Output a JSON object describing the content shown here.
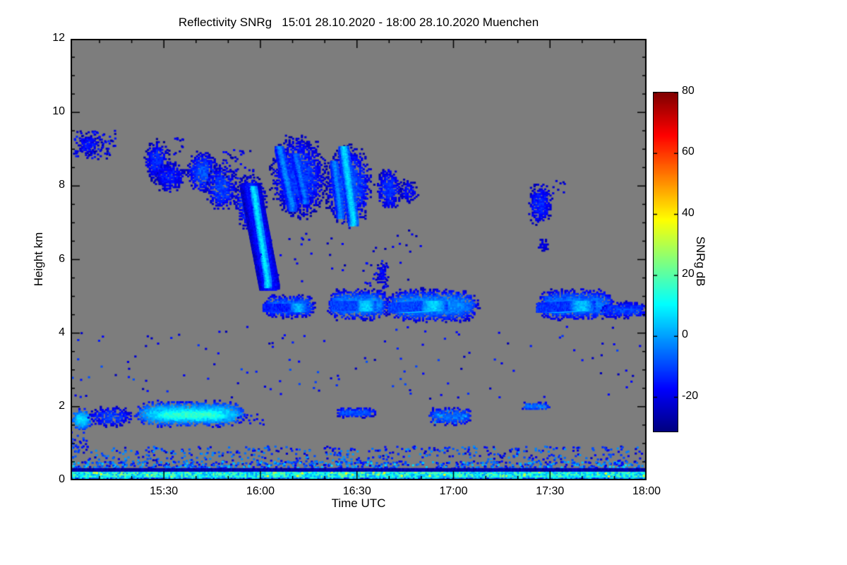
{
  "chart_data": {
    "type": "heatmap",
    "title": "Reflectivity SNRg   15:01 28.10.2020 - 18:00 28.10.2020 Muenchen",
    "site": "Muenchen",
    "time_span": {
      "start": "15:01 28.10.2020",
      "end": "18:00 28.10.2020"
    },
    "xlabel": "Time UTC",
    "ylabel": "Height km",
    "no_data_color": "#7d7d7d",
    "x_axis": {
      "start_min": 1,
      "end_min": 180,
      "minor_step_min": 10,
      "ticks": [
        {
          "label": "15:30",
          "min": 30
        },
        {
          "label": "16:00",
          "min": 60
        },
        {
          "label": "16:30",
          "min": 90
        },
        {
          "label": "17:00",
          "min": 120
        },
        {
          "label": "17:30",
          "min": 150
        },
        {
          "label": "18:00",
          "min": 180
        }
      ]
    },
    "y_axis": {
      "range": [
        0,
        12
      ],
      "ticks": [
        0,
        2,
        4,
        6,
        8,
        10,
        12
      ],
      "minor_step": 0.5
    },
    "colorbar": {
      "label": "SNRg dB",
      "ticks": [
        -20,
        0,
        20,
        40,
        60,
        80
      ],
      "range": [
        -31,
        80
      ],
      "colormap": "jet"
    },
    "features": [
      {
        "kind": "speckle",
        "t": [
          2,
          15
        ],
        "h": [
          8.7,
          9.5
        ],
        "db": [
          -27,
          -13
        ],
        "density": 9
      },
      {
        "kind": "blob",
        "t": [
          3,
          10
        ],
        "h": [
          8.85,
          9.4
        ],
        "db": [
          -26,
          -14
        ],
        "density": 0.8
      },
      {
        "kind": "blob",
        "t": [
          24,
          32
        ],
        "h": [
          8.1,
          9.25
        ],
        "db": [
          -26,
          -12
        ],
        "density": 0.85
      },
      {
        "kind": "blob",
        "t": [
          27,
          37
        ],
        "h": [
          7.8,
          8.7
        ],
        "db": [
          -26,
          -14
        ],
        "density": 0.8
      },
      {
        "kind": "speckle",
        "t": [
          31,
          36
        ],
        "h": [
          8.8,
          9.3
        ],
        "db": [
          -27,
          -18
        ],
        "density": 5
      },
      {
        "kind": "blob",
        "t": [
          37,
          47
        ],
        "h": [
          7.8,
          8.95
        ],
        "db": [
          -25,
          -8
        ],
        "density": 0.85
      },
      {
        "kind": "blob",
        "t": [
          43,
          53
        ],
        "h": [
          7.3,
          8.6
        ],
        "db": [
          -25,
          -10
        ],
        "density": 0.8
      },
      {
        "kind": "speckle",
        "t": [
          48,
          58
        ],
        "h": [
          8.2,
          9.0
        ],
        "db": [
          -27,
          -15
        ],
        "density": 5
      },
      {
        "kind": "blob",
        "t": [
          52,
          62
        ],
        "h": [
          6.8,
          8.3
        ],
        "db": [
          -25,
          -8
        ],
        "density": 0.85
      },
      {
        "kind": "streak",
        "from": [
          57.0,
          8.0
        ],
        "to": [
          63.0,
          5.25
        ],
        "wt": 3,
        "db": [
          -24,
          -13
        ]
      },
      {
        "kind": "streak",
        "from": [
          57.8,
          7.9
        ],
        "to": [
          62.3,
          5.35
        ],
        "wt": 1.3,
        "db": [
          -16,
          9
        ],
        "hw": 0.1
      },
      {
        "kind": "blob",
        "t": [
          63,
          81
        ],
        "h": [
          7.1,
          9.4
        ],
        "db": [
          -26,
          -10
        ],
        "density": 0.85
      },
      {
        "kind": "streak",
        "from": [
          66,
          9.0
        ],
        "to": [
          70,
          7.4
        ],
        "wt": 1.2,
        "db": [
          -15,
          -2
        ]
      },
      {
        "kind": "streak",
        "from": [
          71,
          8.8
        ],
        "to": [
          74,
          7.6
        ],
        "wt": 1.0,
        "db": [
          -15,
          -4
        ]
      },
      {
        "kind": "blob",
        "t": [
          80,
          95
        ],
        "h": [
          6.9,
          9.1
        ],
        "db": [
          -25,
          -8
        ],
        "density": 0.85
      },
      {
        "kind": "streak",
        "from": [
          83,
          8.6
        ],
        "to": [
          85,
          7.2
        ],
        "wt": 1.0,
        "db": [
          -14,
          -2
        ]
      },
      {
        "kind": "streak",
        "from": [
          86,
          9.0
        ],
        "to": [
          89,
          7.0
        ],
        "wt": 1.4,
        "db": [
          -12,
          7
        ]
      },
      {
        "kind": "blob",
        "t": [
          96,
          104
        ],
        "h": [
          7.3,
          8.5
        ],
        "db": [
          -25,
          -12
        ],
        "density": 0.8
      },
      {
        "kind": "blob",
        "t": [
          103,
          109
        ],
        "h": [
          7.5,
          8.2
        ],
        "db": [
          -26,
          -16
        ],
        "density": 0.7
      },
      {
        "kind": "blob",
        "t": [
          143,
          151
        ],
        "h": [
          6.9,
          8.1
        ],
        "db": [
          -26,
          -13
        ],
        "density": 0.75
      },
      {
        "kind": "blob",
        "t": [
          146,
          150
        ],
        "h": [
          6.2,
          6.6
        ],
        "db": [
          -27,
          -18
        ],
        "density": 0.6
      },
      {
        "kind": "speckle",
        "t": [
          150,
          155
        ],
        "h": [
          7.8,
          8.2
        ],
        "db": [
          -27,
          -18
        ],
        "density": 4
      },
      {
        "kind": "layer",
        "t": [
          61,
          77
        ],
        "h": [
          4.4,
          5.05
        ],
        "db": [
          -23,
          -5
        ],
        "density": 0.92
      },
      {
        "kind": "streak",
        "from": [
          64,
          4.7
        ],
        "to": [
          72,
          4.7
        ],
        "wt": 3,
        "db": [
          -14,
          2
        ],
        "hw": 0.1
      },
      {
        "kind": "layer",
        "t": [
          81,
          100
        ],
        "h": [
          4.35,
          5.2
        ],
        "db": [
          -23,
          -1
        ],
        "density": 0.92
      },
      {
        "kind": "streak",
        "from": [
          85,
          4.75
        ],
        "to": [
          93,
          4.75
        ],
        "wt": 3,
        "db": [
          -10,
          6
        ],
        "hw": 0.12
      },
      {
        "kind": "speckle",
        "t": [
          92,
          100
        ],
        "h": [
          5.2,
          6.0
        ],
        "db": [
          -26,
          -14
        ],
        "density": 5
      },
      {
        "kind": "blob",
        "t": [
          96,
          99.5
        ],
        "h": [
          5.3,
          5.95
        ],
        "db": [
          -25,
          -16
        ],
        "density": 0.65
      },
      {
        "kind": "layer",
        "t": [
          99,
          128
        ],
        "h": [
          4.3,
          5.2
        ],
        "db": [
          -23,
          -1
        ],
        "density": 0.92
      },
      {
        "kind": "streak",
        "from": [
          104,
          4.7
        ],
        "to": [
          114,
          4.75
        ],
        "wt": 4,
        "db": [
          -10,
          6
        ],
        "hw": 0.12
      },
      {
        "kind": "layer",
        "t": [
          146,
          170
        ],
        "h": [
          4.35,
          5.2
        ],
        "db": [
          -23,
          -3
        ],
        "density": 0.9
      },
      {
        "kind": "streak",
        "from": [
          150,
          4.7
        ],
        "to": [
          160,
          4.75
        ],
        "wt": 4,
        "db": [
          -12,
          4
        ],
        "hw": 0.12
      },
      {
        "kind": "layer",
        "t": [
          166,
          180
        ],
        "h": [
          4.4,
          4.85
        ],
        "db": [
          -23,
          -10
        ],
        "density": 0.85
      },
      {
        "kind": "speckle",
        "t": [
          60,
          110
        ],
        "h": [
          5.3,
          6.8
        ],
        "db": [
          -27,
          -15
        ],
        "density": 0.5
      },
      {
        "kind": "blob",
        "t": [
          1,
          8
        ],
        "h": [
          1.35,
          1.95
        ],
        "db": [
          -15,
          8
        ],
        "density": 0.95
      },
      {
        "kind": "speckle",
        "t": [
          1,
          6
        ],
        "h": [
          0.85,
          1.3
        ],
        "db": [
          -22,
          -8
        ],
        "density": 8
      },
      {
        "kind": "blob",
        "t": [
          6,
          21
        ],
        "h": [
          1.45,
          2.0
        ],
        "db": [
          -24,
          -10
        ],
        "density": 0.72
      },
      {
        "kind": "layer",
        "t": [
          21,
          56
        ],
        "h": [
          1.45,
          2.15
        ],
        "db": [
          -18,
          8
        ],
        "density": 0.95
      },
      {
        "kind": "layer",
        "t": [
          27,
          50
        ],
        "h": [
          1.6,
          1.95
        ],
        "db": [
          0,
          16
        ],
        "density": 0.95
      },
      {
        "kind": "speckle",
        "t": [
          53,
          61
        ],
        "h": [
          1.5,
          1.8
        ],
        "db": [
          -24,
          -12
        ],
        "density": 6
      },
      {
        "kind": "layer",
        "t": [
          83,
          96
        ],
        "h": [
          1.7,
          1.98
        ],
        "db": [
          -22,
          -8
        ],
        "density": 0.85
      },
      {
        "kind": "layer",
        "t": [
          112,
          126
        ],
        "h": [
          1.5,
          1.98
        ],
        "db": [
          -22,
          -6
        ],
        "density": 0.8
      },
      {
        "kind": "speckle",
        "t": [
          113,
          125
        ],
        "h": [
          1.55,
          1.9
        ],
        "db": [
          -6,
          4
        ],
        "density": 3
      },
      {
        "kind": "layer",
        "t": [
          141,
          150
        ],
        "h": [
          1.9,
          2.12
        ],
        "db": [
          -20,
          -4
        ],
        "density": 0.85
      },
      {
        "kind": "speckle",
        "t": [
          1,
          180
        ],
        "h": [
          2.2,
          4.2
        ],
        "db": [
          -26,
          -8
        ],
        "density": 0.35
      },
      {
        "kind": "speckle",
        "t": [
          1,
          180
        ],
        "h": [
          0.45,
          0.92
        ],
        "db": [
          -24,
          0
        ],
        "density": 6
      },
      {
        "kind": "speckle",
        "t": [
          1,
          180
        ],
        "h": [
          0.3,
          0.5
        ],
        "db": [
          -22,
          8
        ],
        "density": 16
      },
      {
        "kind": "band",
        "t": [
          1,
          180
        ],
        "h": [
          0.07,
          0.26
        ],
        "db": [
          -2,
          24
        ]
      },
      {
        "kind": "speckle",
        "t": [
          1,
          180
        ],
        "h": [
          0.08,
          0.25
        ],
        "db": [
          18,
          40
        ],
        "density": 2
      },
      {
        "kind": "band",
        "t": [
          1,
          180
        ],
        "h": [
          0.26,
          0.32
        ],
        "db": [
          -30,
          -23
        ]
      },
      {
        "kind": "band",
        "t": [
          1,
          180
        ],
        "h": [
          0.0,
          0.07
        ],
        "db": [
          -18,
          12
        ]
      }
    ]
  }
}
